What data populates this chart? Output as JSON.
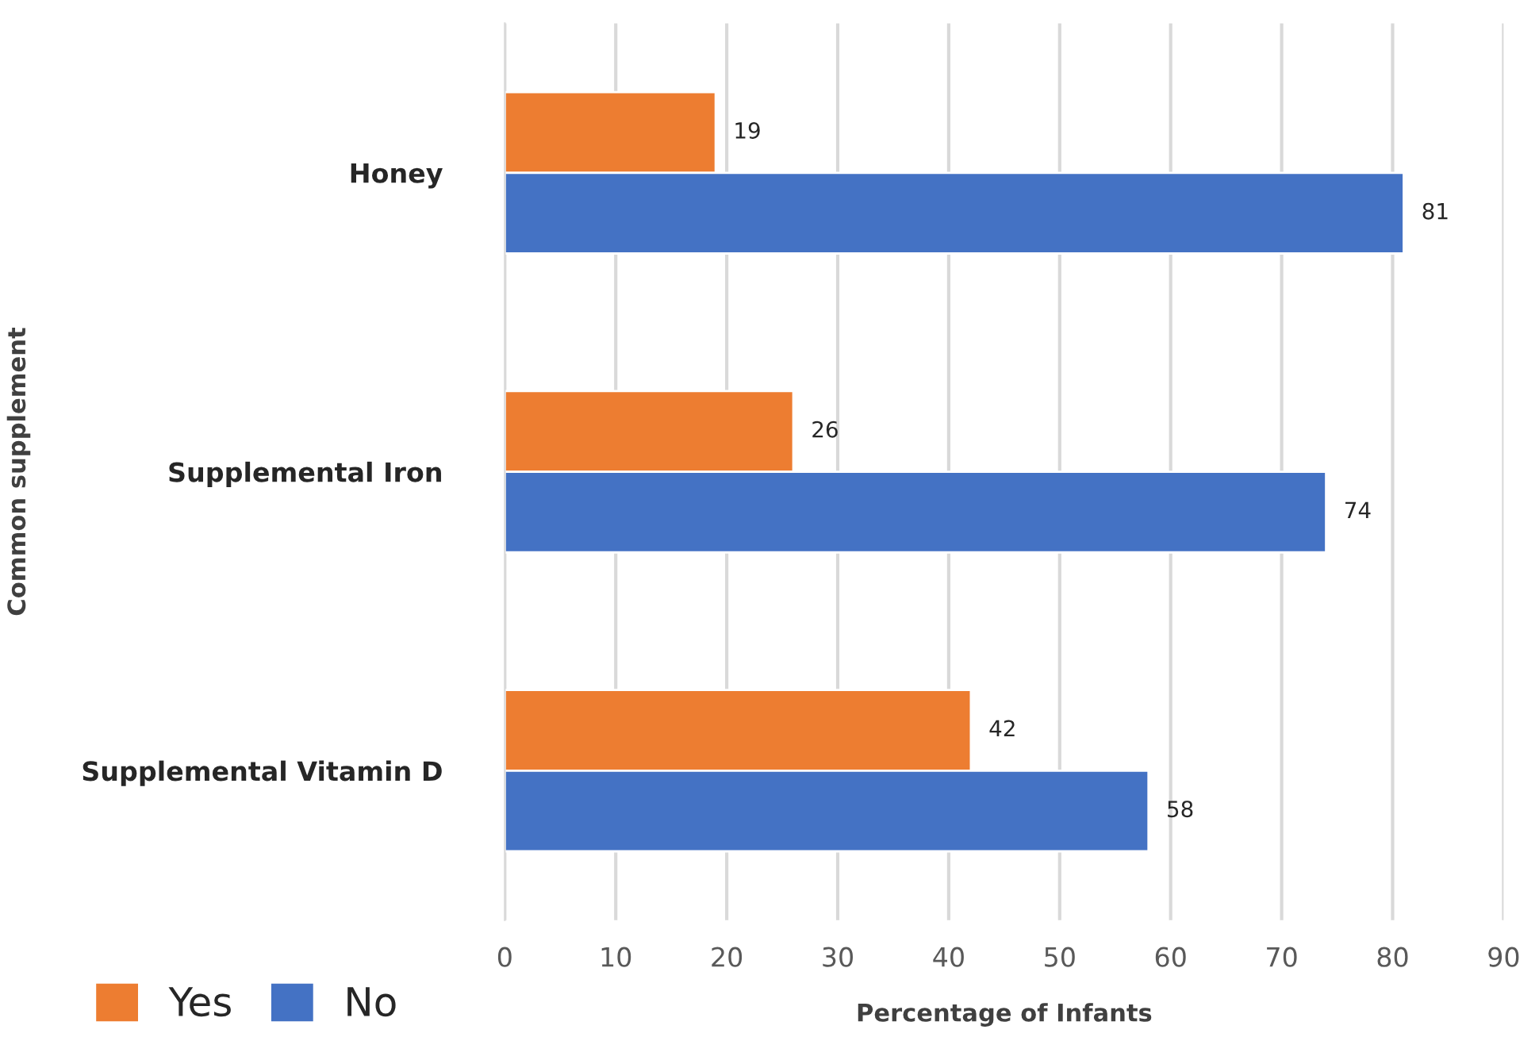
{
  "chart_data": {
    "type": "bar",
    "orientation": "horizontal",
    "xlabel": "Percentage of Infants",
    "ylabel": "Common supplement",
    "categories": [
      "Honey",
      "Supplemental Iron",
      "Supplemental Vitamin D"
    ],
    "series": [
      {
        "name": "Yes",
        "color": "#ed7d31",
        "values": [
          19,
          26,
          42
        ]
      },
      {
        "name": "No",
        "color": "#4472c4",
        "values": [
          81,
          74,
          58
        ]
      }
    ],
    "xlim": [
      0,
      90
    ],
    "xticks": [
      0,
      10,
      20,
      30,
      40,
      50,
      60,
      70,
      80,
      90
    ],
    "grid": "x",
    "legend": "bottom left",
    "data_labels": true
  }
}
